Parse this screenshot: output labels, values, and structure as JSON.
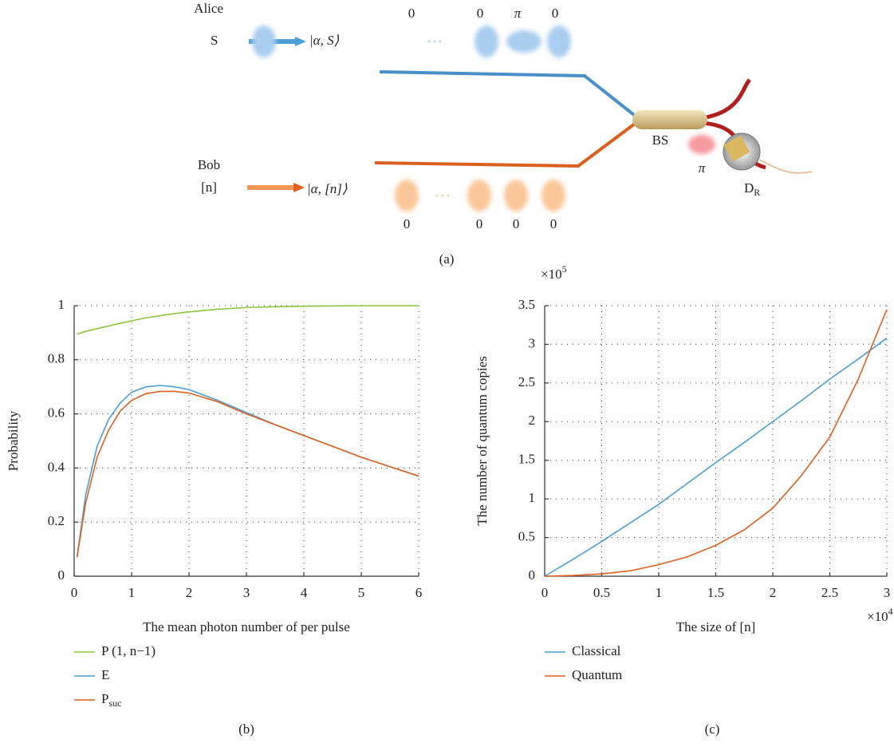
{
  "diagram": {
    "alice": {
      "name": "Alice",
      "input": "S",
      "state": "|α, S⟩",
      "phases": [
        "0",
        "0",
        "π",
        "0"
      ]
    },
    "bob": {
      "name": "Bob",
      "input": "[n]",
      "state": "|α, [n]⟩",
      "phases": [
        "0",
        "0",
        "0",
        "0"
      ]
    },
    "beam_splitter": "BS",
    "output_phase": "π",
    "detector": {
      "label": "D",
      "subscript": "R"
    },
    "label": "(a)"
  },
  "chart_data": [
    {
      "type": "line",
      "label": "(b)",
      "ylabel": "Probability",
      "xlabel": "The mean photon number of per pulse",
      "xlim": [
        0,
        6
      ],
      "xticks": [
        0,
        1,
        2,
        3,
        4,
        5,
        6
      ],
      "ylim": [
        0,
        1
      ],
      "yticks": [
        0,
        0.2,
        0.4,
        0.6,
        0.8,
        1
      ],
      "grid": true,
      "x": [
        0.05,
        0.2,
        0.4,
        0.6,
        0.8,
        1,
        1.25,
        1.5,
        1.75,
        2,
        2.5,
        3,
        3.5,
        4,
        4.5,
        5,
        5.5,
        6
      ],
      "series": [
        {
          "name": "P (1, n−1)",
          "color": "#8cc63e",
          "values": [
            0.895,
            0.905,
            0.915,
            0.925,
            0.935,
            0.944,
            0.955,
            0.963,
            0.971,
            0.977,
            0.987,
            0.993,
            0.996,
            0.998,
            0.999,
            1,
            1,
            1
          ]
        },
        {
          "name": "E",
          "color": "#4a9fd4",
          "values": [
            0.07,
            0.3,
            0.48,
            0.58,
            0.64,
            0.68,
            0.7,
            0.705,
            0.7,
            0.69,
            0.65,
            0.605,
            0.56,
            0.52,
            0.48,
            0.44,
            0.405,
            0.37
          ]
        },
        {
          "name": "P",
          "subscript": "suc",
          "color": "#e0601f",
          "values": [
            0.07,
            0.27,
            0.44,
            0.54,
            0.61,
            0.65,
            0.675,
            0.683,
            0.683,
            0.677,
            0.645,
            0.6,
            0.56,
            0.52,
            0.48,
            0.44,
            0.405,
            0.37
          ]
        }
      ]
    },
    {
      "type": "line",
      "label": "(c)",
      "ylabel": "The number of quantum copies",
      "xlabel": "The size of [n]",
      "x_multiplier": {
        "base": "×10",
        "exponent": "4"
      },
      "y_multiplier": {
        "base": "×10",
        "exponent": "5"
      },
      "xlim": [
        0,
        30000
      ],
      "xticks": [
        {
          "value": 0,
          "label": "0"
        },
        {
          "value": 5000,
          "label": "0.5"
        },
        {
          "value": 10000,
          "label": "1"
        },
        {
          "value": 15000,
          "label": "1.5"
        },
        {
          "value": 20000,
          "label": "2"
        },
        {
          "value": 25000,
          "label": "2.5"
        },
        {
          "value": 30000,
          "label": "3"
        }
      ],
      "ylim": [
        0,
        350000
      ],
      "yticks": [
        {
          "value": 0,
          "label": "0"
        },
        {
          "value": 50000,
          "label": "0.5"
        },
        {
          "value": 100000,
          "label": "1"
        },
        {
          "value": 150000,
          "label": "1.5"
        },
        {
          "value": 200000,
          "label": "2"
        },
        {
          "value": 250000,
          "label": "2.5"
        },
        {
          "value": 300000,
          "label": "3"
        },
        {
          "value": 350000,
          "label": "3.5"
        }
      ],
      "grid": true,
      "x": [
        0,
        2500,
        5000,
        7500,
        10000,
        12500,
        15000,
        17500,
        20000,
        22500,
        25000,
        27500,
        30000
      ],
      "series": [
        {
          "name": "Classical",
          "color": "#4a9fd4",
          "values": [
            0,
            22000,
            45000,
            69000,
            93000,
            120000,
            147000,
            173000,
            200000,
            227000,
            255000,
            281000,
            308000
          ]
        },
        {
          "name": "Quantum",
          "color": "#e0601f",
          "values": [
            0,
            1000,
            3000,
            7000,
            15000,
            25000,
            40000,
            60000,
            88000,
            130000,
            180000,
            255000,
            345000
          ]
        }
      ]
    }
  ]
}
